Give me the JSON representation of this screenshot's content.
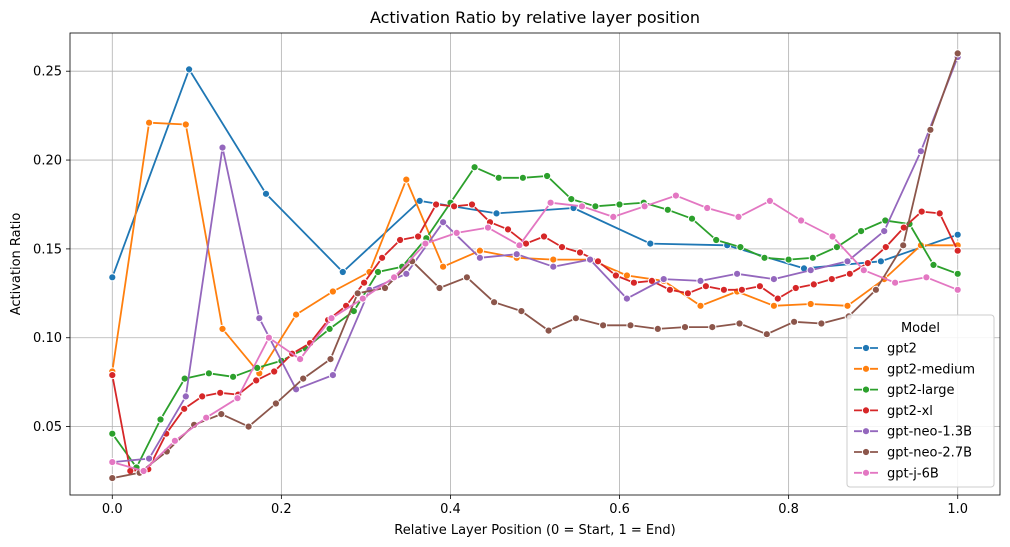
{
  "chart_data": {
    "type": "line",
    "title": "Activation Ratio by relative layer position",
    "xlabel": "Relative Layer Position (0 = Start, 1 = End)",
    "ylabel": "Activation Ratio",
    "xlim": [
      -0.05,
      1.05
    ],
    "ylim": [
      0.0115,
      0.2715
    ],
    "xticks": [
      0.0,
      0.2,
      0.4,
      0.6,
      0.8,
      1.0
    ],
    "xtick_labels": [
      "0.0",
      "0.2",
      "0.4",
      "0.6",
      "0.8",
      "1.0"
    ],
    "yticks": [
      0.05,
      0.1,
      0.15,
      0.2,
      0.25
    ],
    "ytick_labels": [
      "0.05",
      "0.10",
      "0.15",
      "0.20",
      "0.25"
    ],
    "grid": true,
    "legend": {
      "title": "Model",
      "placement": "lower-right"
    },
    "series": [
      {
        "name": "gpt2",
        "color": "#1f77b4",
        "x": [
          0.0,
          0.0909,
          0.1818,
          0.2727,
          0.3636,
          0.4545,
          0.5455,
          0.6364,
          0.7273,
          0.8182,
          0.9091,
          1.0
        ],
        "y": [
          0.134,
          0.251,
          0.181,
          0.137,
          0.177,
          0.17,
          0.173,
          0.153,
          0.152,
          0.139,
          0.143,
          0.158
        ]
      },
      {
        "name": "gpt2-medium",
        "color": "#ff7f0e",
        "x": [
          0.0,
          0.0435,
          0.087,
          0.1304,
          0.1739,
          0.2174,
          0.2609,
          0.3043,
          0.3478,
          0.3913,
          0.4348,
          0.4783,
          0.5217,
          0.5652,
          0.6087,
          0.6522,
          0.6957,
          0.7391,
          0.7826,
          0.8261,
          0.8696,
          0.913,
          0.9565,
          1.0
        ],
        "y": [
          0.081,
          0.221,
          0.22,
          0.105,
          0.08,
          0.113,
          0.126,
          0.137,
          0.189,
          0.14,
          0.149,
          0.145,
          0.144,
          0.144,
          0.135,
          0.132,
          0.118,
          0.126,
          0.118,
          0.119,
          0.118,
          0.133,
          0.152,
          0.152
        ]
      },
      {
        "name": "gpt2-large",
        "color": "#2ca02c",
        "x": [
          0.0,
          0.0286,
          0.0571,
          0.0857,
          0.1143,
          0.1429,
          0.1714,
          0.2,
          0.2286,
          0.2571,
          0.2857,
          0.3143,
          0.3429,
          0.3714,
          0.4,
          0.4286,
          0.4571,
          0.4857,
          0.5143,
          0.5429,
          0.5714,
          0.6,
          0.6286,
          0.6571,
          0.6857,
          0.7143,
          0.7429,
          0.7714,
          0.8,
          0.8286,
          0.8571,
          0.8857,
          0.9143,
          0.9429,
          0.9714,
          1.0
        ],
        "y": [
          0.046,
          0.027,
          0.054,
          0.077,
          0.08,
          0.078,
          0.083,
          0.087,
          0.094,
          0.105,
          0.115,
          0.137,
          0.14,
          0.156,
          0.176,
          0.196,
          0.19,
          0.19,
          0.191,
          0.178,
          0.174,
          0.175,
          0.176,
          0.172,
          0.167,
          0.155,
          0.151,
          0.145,
          0.144,
          0.145,
          0.151,
          0.16,
          0.166,
          0.164,
          0.141,
          0.136
        ]
      },
      {
        "name": "gpt2-xl",
        "color": "#d62728",
        "x": [
          0.0,
          0.0213,
          0.0426,
          0.0638,
          0.0851,
          0.1064,
          0.1277,
          0.1489,
          0.1702,
          0.1915,
          0.2128,
          0.234,
          0.2553,
          0.2766,
          0.2979,
          0.3191,
          0.3404,
          0.3617,
          0.383,
          0.4043,
          0.4255,
          0.4468,
          0.4681,
          0.4894,
          0.5106,
          0.5319,
          0.5532,
          0.5745,
          0.5957,
          0.617,
          0.6383,
          0.6596,
          0.6809,
          0.7021,
          0.7234,
          0.7447,
          0.766,
          0.7872,
          0.8085,
          0.8298,
          0.8511,
          0.8723,
          0.8936,
          0.9149,
          0.9362,
          0.9574,
          0.9787,
          1.0
        ],
        "y": [
          0.079,
          0.025,
          0.026,
          0.046,
          0.06,
          0.067,
          0.069,
          0.068,
          0.076,
          0.081,
          0.091,
          0.097,
          0.11,
          0.118,
          0.131,
          0.145,
          0.155,
          0.157,
          0.175,
          0.174,
          0.175,
          0.165,
          0.161,
          0.153,
          0.157,
          0.151,
          0.148,
          0.143,
          0.135,
          0.131,
          0.132,
          0.127,
          0.125,
          0.129,
          0.127,
          0.127,
          0.129,
          0.122,
          0.128,
          0.13,
          0.133,
          0.136,
          0.142,
          0.151,
          0.162,
          0.171,
          0.17,
          0.149
        ]
      },
      {
        "name": "gpt-neo-1.3B",
        "color": "#9467bd",
        "x": [
          0.0,
          0.0435,
          0.087,
          0.1304,
          0.1739,
          0.2174,
          0.2609,
          0.3043,
          0.3478,
          0.3913,
          0.4348,
          0.4783,
          0.5217,
          0.5652,
          0.6087,
          0.6522,
          0.6957,
          0.7391,
          0.7826,
          0.8261,
          0.8696,
          0.913,
          0.9565,
          1.0
        ],
        "y": [
          0.03,
          0.032,
          0.067,
          0.207,
          0.111,
          0.071,
          0.079,
          0.127,
          0.136,
          0.165,
          0.145,
          0.147,
          0.14,
          0.144,
          0.122,
          0.133,
          0.132,
          0.136,
          0.133,
          0.138,
          0.143,
          0.16,
          0.205,
          0.258
        ]
      },
      {
        "name": "gpt-neo-2.7B",
        "color": "#8c564b",
        "x": [
          0.0,
          0.0323,
          0.0645,
          0.0968,
          0.129,
          0.1613,
          0.1935,
          0.2258,
          0.2581,
          0.2903,
          0.3226,
          0.3548,
          0.3871,
          0.4194,
          0.4516,
          0.4839,
          0.5161,
          0.5484,
          0.5806,
          0.6129,
          0.6452,
          0.6774,
          0.7097,
          0.7419,
          0.7742,
          0.8065,
          0.8387,
          0.871,
          0.9032,
          0.9355,
          0.9677,
          1.0
        ],
        "y": [
          0.021,
          0.024,
          0.036,
          0.051,
          0.057,
          0.05,
          0.063,
          0.077,
          0.088,
          0.125,
          0.128,
          0.143,
          0.128,
          0.134,
          0.12,
          0.115,
          0.104,
          0.111,
          0.107,
          0.107,
          0.105,
          0.106,
          0.106,
          0.108,
          0.102,
          0.109,
          0.108,
          0.112,
          0.127,
          0.152,
          0.217,
          0.26
        ]
      },
      {
        "name": "gpt-j-6B",
        "color": "#e377c2",
        "x": [
          0.0,
          0.037,
          0.0741,
          0.1111,
          0.1481,
          0.1852,
          0.2222,
          0.2593,
          0.2963,
          0.3333,
          0.3704,
          0.4074,
          0.4444,
          0.4815,
          0.5185,
          0.5556,
          0.5926,
          0.6296,
          0.6667,
          0.7037,
          0.7407,
          0.7778,
          0.8148,
          0.8519,
          0.8889,
          0.9259,
          0.963,
          1.0
        ],
        "y": [
          0.03,
          0.025,
          0.042,
          0.055,
          0.066,
          0.1,
          0.088,
          0.111,
          0.122,
          0.134,
          0.153,
          0.159,
          0.162,
          0.152,
          0.176,
          0.174,
          0.168,
          0.174,
          0.18,
          0.173,
          0.168,
          0.177,
          0.166,
          0.157,
          0.138,
          0.131,
          0.134,
          0.127
        ]
      }
    ]
  }
}
